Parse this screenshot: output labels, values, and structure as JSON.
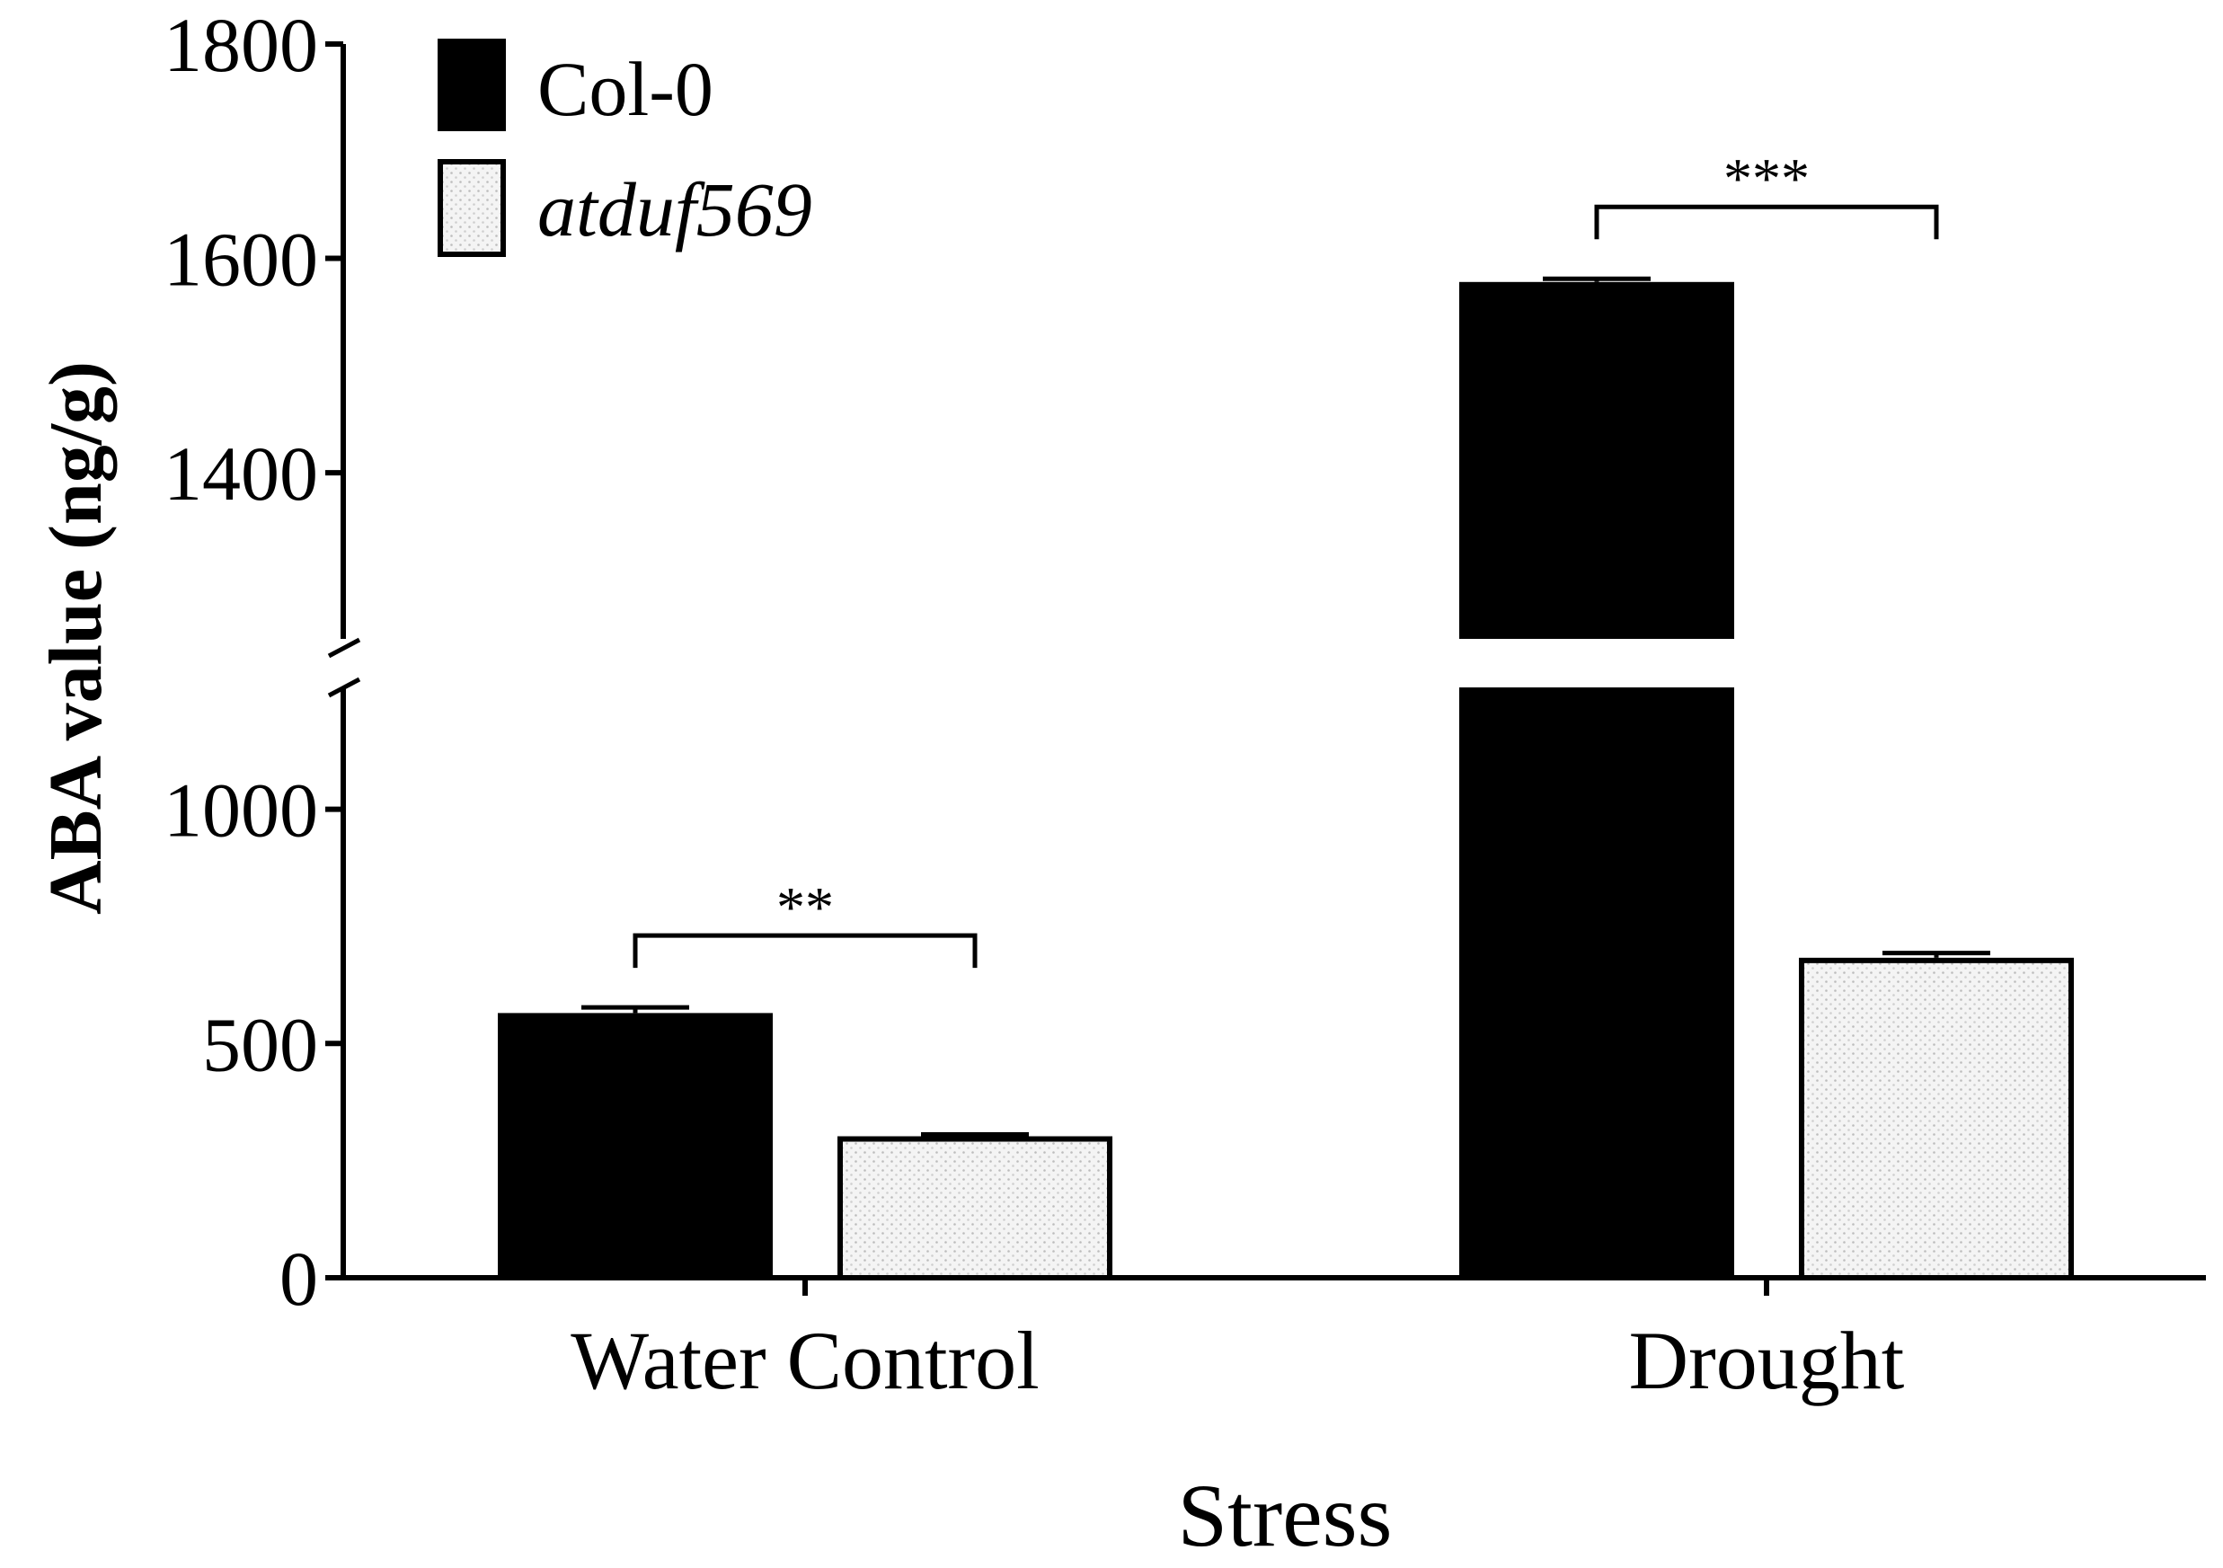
{
  "chart_data": {
    "type": "bar",
    "title": "",
    "xlabel": "Stress",
    "ylabel": "ABA value (ng/g)",
    "categories": [
      "Water Control",
      "Drought"
    ],
    "series": [
      {
        "name": "Col-0",
        "fill": "solid-black",
        "values": [
          565,
          1578
        ],
        "errors": [
          12,
          3
        ]
      },
      {
        "name": "atduf569",
        "fill": "light-stipple",
        "values": [
          302,
          683
        ],
        "errors": [
          4,
          10
        ]
      }
    ],
    "yaxis": {
      "broken": true,
      "lower_segment": {
        "range": [
          0,
          1260
        ],
        "ticks": [
          0,
          500,
          1000
        ]
      },
      "upper_segment": {
        "range": [
          1245,
          1800
        ],
        "ticks": [
          1400,
          1600,
          1800
        ]
      }
    },
    "tick_labels": {
      "lower": [
        "0",
        "500",
        "1000"
      ],
      "upper": [
        "1400",
        "1600",
        "1800"
      ]
    },
    "significance": [
      {
        "category": "Water Control",
        "label": "**"
      },
      {
        "category": "Drought",
        "label": "***"
      }
    ],
    "legend": {
      "position": "top-left",
      "entries": [
        {
          "label": "Col-0",
          "italic": false
        },
        {
          "label": "atduf569",
          "italic": true
        }
      ]
    },
    "colors": {
      "dark": "#000000",
      "light": "#f4f4f4",
      "background": "#ffffff"
    }
  }
}
